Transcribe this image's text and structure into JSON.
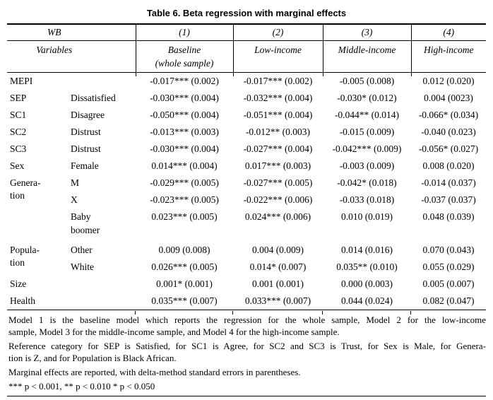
{
  "title": "Table 6. Beta regression with marginal effects",
  "table": {
    "header": {
      "group_label": "WB",
      "model_numbers": [
        "(1)",
        "(2)",
        "(3)",
        "(4)"
      ],
      "variables_label": "Variables",
      "model_names": [
        "Baseline\n(whole sample)",
        "Low-income",
        "Middle-income",
        "High-income"
      ]
    },
    "rows": [
      {
        "var": "MEPI",
        "cat": "",
        "values": [
          "-0.017*** (0.002)",
          "-0.017*** (0.002)",
          "-0.005 (0.008)",
          "0.012 (0.020)"
        ]
      },
      {
        "var": "SEP",
        "cat": "Dissatisfied",
        "values": [
          "-0.030*** (0.004)",
          "-0.032*** (0.004)",
          "-0.030* (0.012)",
          "0.004 (0023)"
        ]
      },
      {
        "var": "SC1",
        "cat": "Disagree",
        "values": [
          "-0.050*** (0.004)",
          "-0.051*** (0.004)",
          "-0.044** (0.014)",
          "-0.066* (0.034)"
        ]
      },
      {
        "var": "SC2",
        "cat": "Distrust",
        "values": [
          "-0.013*** (0.003)",
          "-0.012** (0.003)",
          "-0.015 (0.009)",
          "-0.040 (0.023)"
        ]
      },
      {
        "var": "SC3",
        "cat": "Distrust",
        "values": [
          "-0.030*** (0.004)",
          "-0.027*** (0.004)",
          "-0.042*** (0.009)",
          "-0.056* (0.027)"
        ]
      },
      {
        "var": "Sex",
        "cat": "Female",
        "values": [
          "0.014*** (0.004)",
          "0.017*** (0.003)",
          "-0.003 (0.009)",
          "0.008 (0.020)"
        ]
      },
      {
        "var": "Genera-\ntion",
        "varSpan": 3,
        "cat": "M",
        "values": [
          "-0.029*** (0.005)",
          "-0.027*** (0.005)",
          "-0.042* (0.018)",
          "-0.014 (0.037)"
        ]
      },
      {
        "var": null,
        "cat": "X",
        "values": [
          "-0.023*** (0.005)",
          "-0.022*** (0.006)",
          "-0.033 (0.018)",
          "-0.037 (0.037)"
        ]
      },
      {
        "var": null,
        "cat": "Baby\nboomer",
        "tall": true,
        "values": [
          "0.023*** (0.005)",
          "0.024*** (0.006)",
          "0.010 (0.019)",
          "0.048 (0.039)"
        ]
      },
      {
        "var": "Popula-\ntion",
        "varSpan": 2,
        "cat": "Other",
        "values": [
          "0.009 (0.008)",
          "0.004 (0.009)",
          "0.014 (0.016)",
          "0.070 (0.043)"
        ]
      },
      {
        "var": null,
        "cat": "White",
        "values": [
          "0.026*** (0.005)",
          "0.014* (0.007)",
          "0.035** (0.010)",
          "0.055 (0.029)"
        ]
      },
      {
        "var": "Size",
        "cat": "",
        "values": [
          "0.001* (0.001)",
          "0.001 (0.001)",
          "0.000 (0.003)",
          "0.005 (0.007)"
        ]
      },
      {
        "var": "Health",
        "cat": "",
        "values": [
          "0.035*** (0.007)",
          "0.033*** (0.007)",
          "0.044 (0.024)",
          "0.082 (0.047)"
        ]
      }
    ]
  },
  "footnotes": [
    {
      "lines": [
        "Model 1 is the baseline model which reports the regression for the whole sample, Model 2 for the low-income",
        "sample, Model 3 for the middle-income sample, and Model 4 for the high-income sample."
      ]
    },
    {
      "lines": [
        "Reference category for SEP is Satisfied, for SC1 is Agree, for SC2 and SC3 is Trust, for Sex is Male, for Genera-",
        "tion is Z, and for Population is Black African."
      ]
    },
    {
      "lines": [
        "Marginal effects are reported, with delta-method standard errors in parentheses."
      ]
    },
    {
      "lines": [
        "*** p < 0.001, ** p < 0.010 * p < 0.050"
      ]
    }
  ]
}
